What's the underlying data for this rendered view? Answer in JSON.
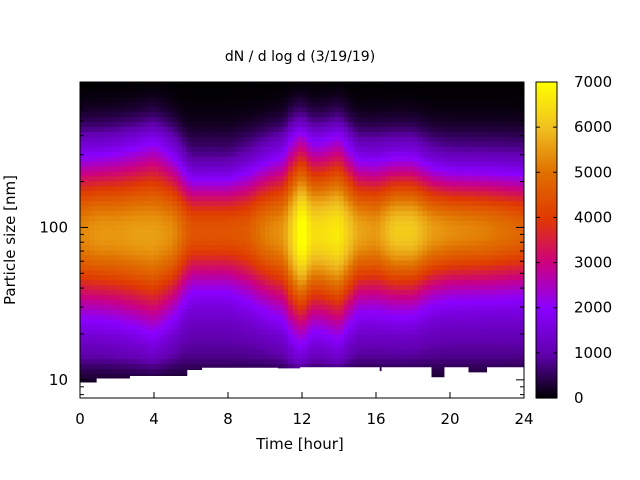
{
  "chart_data": {
    "type": "heatmap",
    "title": "dN / d log d (3/19/19)",
    "xlabel": "Time [hour]",
    "ylabel": "Particle size [nm]",
    "x_ticks": [
      0,
      4,
      8,
      12,
      16,
      20,
      24
    ],
    "xlim": [
      0,
      24
    ],
    "y_scale": "log",
    "y_ticks": [
      10,
      100
    ],
    "ylim": [
      7.6,
      900
    ],
    "colorbar": {
      "ticks": [
        0,
        1000,
        2000,
        3000,
        4000,
        5000,
        6000,
        7000
      ],
      "range": [
        0,
        7000
      ],
      "stops": [
        "#000000",
        "#6200b0",
        "#8a00ff",
        "#cc0080",
        "#e03a00",
        "#e07000",
        "#f0c020",
        "#ffff00"
      ]
    },
    "peak_diameter_nm": 100,
    "intensity_profile": {
      "hours": [
        0,
        1,
        2,
        3,
        4,
        5,
        6,
        7,
        8,
        9,
        10,
        11,
        11.5,
        12,
        12.5,
        13,
        14,
        15,
        16,
        17,
        18,
        19,
        20,
        21,
        22,
        23,
        24
      ],
      "peak_values": [
        4100,
        4300,
        4300,
        4400,
        4400,
        4200,
        3300,
        3300,
        3300,
        3400,
        4000,
        4300,
        5200,
        6100,
        5300,
        5300,
        5500,
        4500,
        4300,
        5000,
        5000,
        4400,
        4200,
        4100,
        4000,
        3800,
        3600
      ],
      "width_decades": [
        0.5,
        0.5,
        0.52,
        0.55,
        0.6,
        0.5,
        0.35,
        0.35,
        0.35,
        0.4,
        0.45,
        0.5,
        0.6,
        0.62,
        0.55,
        0.55,
        0.6,
        0.45,
        0.45,
        0.45,
        0.45,
        0.4,
        0.38,
        0.38,
        0.38,
        0.38,
        0.38
      ]
    },
    "detection_floor_nm": {
      "hours": [
        0,
        0.9,
        0.9,
        2.7,
        2.7,
        5.8,
        5.8,
        6.6,
        6.6,
        10.7,
        10.7,
        11.9,
        11.9,
        16.2,
        16.2,
        16.3,
        16.3,
        19.0,
        19.0,
        19.7,
        19.7,
        21.0,
        21.0,
        22.0,
        22.0,
        24
      ],
      "lower_bound_nm": [
        9.6,
        9.6,
        10.2,
        10.2,
        10.6,
        10.6,
        11.6,
        11.6,
        12.0,
        12.0,
        11.9,
        11.9,
        12.1,
        12.1,
        11.4,
        11.4,
        12.1,
        12.1,
        10.4,
        10.4,
        12.1,
        12.1,
        11.2,
        11.2,
        12.1,
        12.1
      ]
    }
  }
}
